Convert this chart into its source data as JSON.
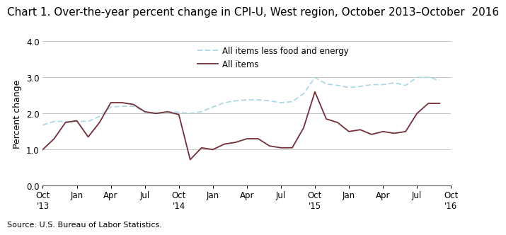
{
  "title": "Chart 1. Over-the-year percent change in CPI-U, West region, October 2013–October  2016",
  "ylabel": "Percent change",
  "source": "Source: U.S. Bureau of Labor Statistics.",
  "ylim": [
    0.0,
    4.0
  ],
  "yticks": [
    0.0,
    1.0,
    2.0,
    3.0,
    4.0
  ],
  "xtick_labels": [
    "Oct\n'13",
    "Jan",
    "Apr",
    "Jul",
    "Oct\n'14",
    "Jan",
    "Apr",
    "Jul",
    "Oct\n'15",
    "Jan",
    "Apr",
    "Jul",
    "Oct\n'16"
  ],
  "xtick_positions": [
    0,
    3,
    6,
    9,
    12,
    15,
    18,
    21,
    24,
    27,
    30,
    33,
    36
  ],
  "all_items": [
    1.0,
    1.3,
    1.75,
    1.8,
    1.35,
    1.75,
    2.3,
    2.3,
    2.25,
    2.05,
    2.0,
    2.05,
    1.97,
    0.72,
    1.05,
    1.0,
    1.15,
    1.2,
    1.3,
    1.3,
    1.1,
    1.05,
    1.05,
    1.6,
    2.6,
    1.85,
    1.75,
    1.5,
    1.55,
    1.42,
    1.5,
    1.45,
    1.5,
    2.0,
    2.28,
    2.28
  ],
  "all_items_less": [
    1.68,
    1.78,
    1.78,
    1.78,
    1.78,
    1.92,
    2.18,
    2.2,
    2.2,
    2.05,
    2.0,
    2.05,
    2.03,
    2.0,
    2.05,
    2.18,
    2.3,
    2.35,
    2.38,
    2.38,
    2.35,
    2.3,
    2.33,
    2.55,
    3.0,
    2.82,
    2.78,
    2.72,
    2.75,
    2.8,
    2.8,
    2.85,
    2.78,
    3.0,
    3.0,
    2.92
  ],
  "all_items_color": "#722F37",
  "all_items_less_color": "#add8e6",
  "background_color": "#ffffff",
  "grid_color": "#bbbbbb",
  "title_fontsize": 11,
  "label_fontsize": 9,
  "tick_fontsize": 8.5
}
